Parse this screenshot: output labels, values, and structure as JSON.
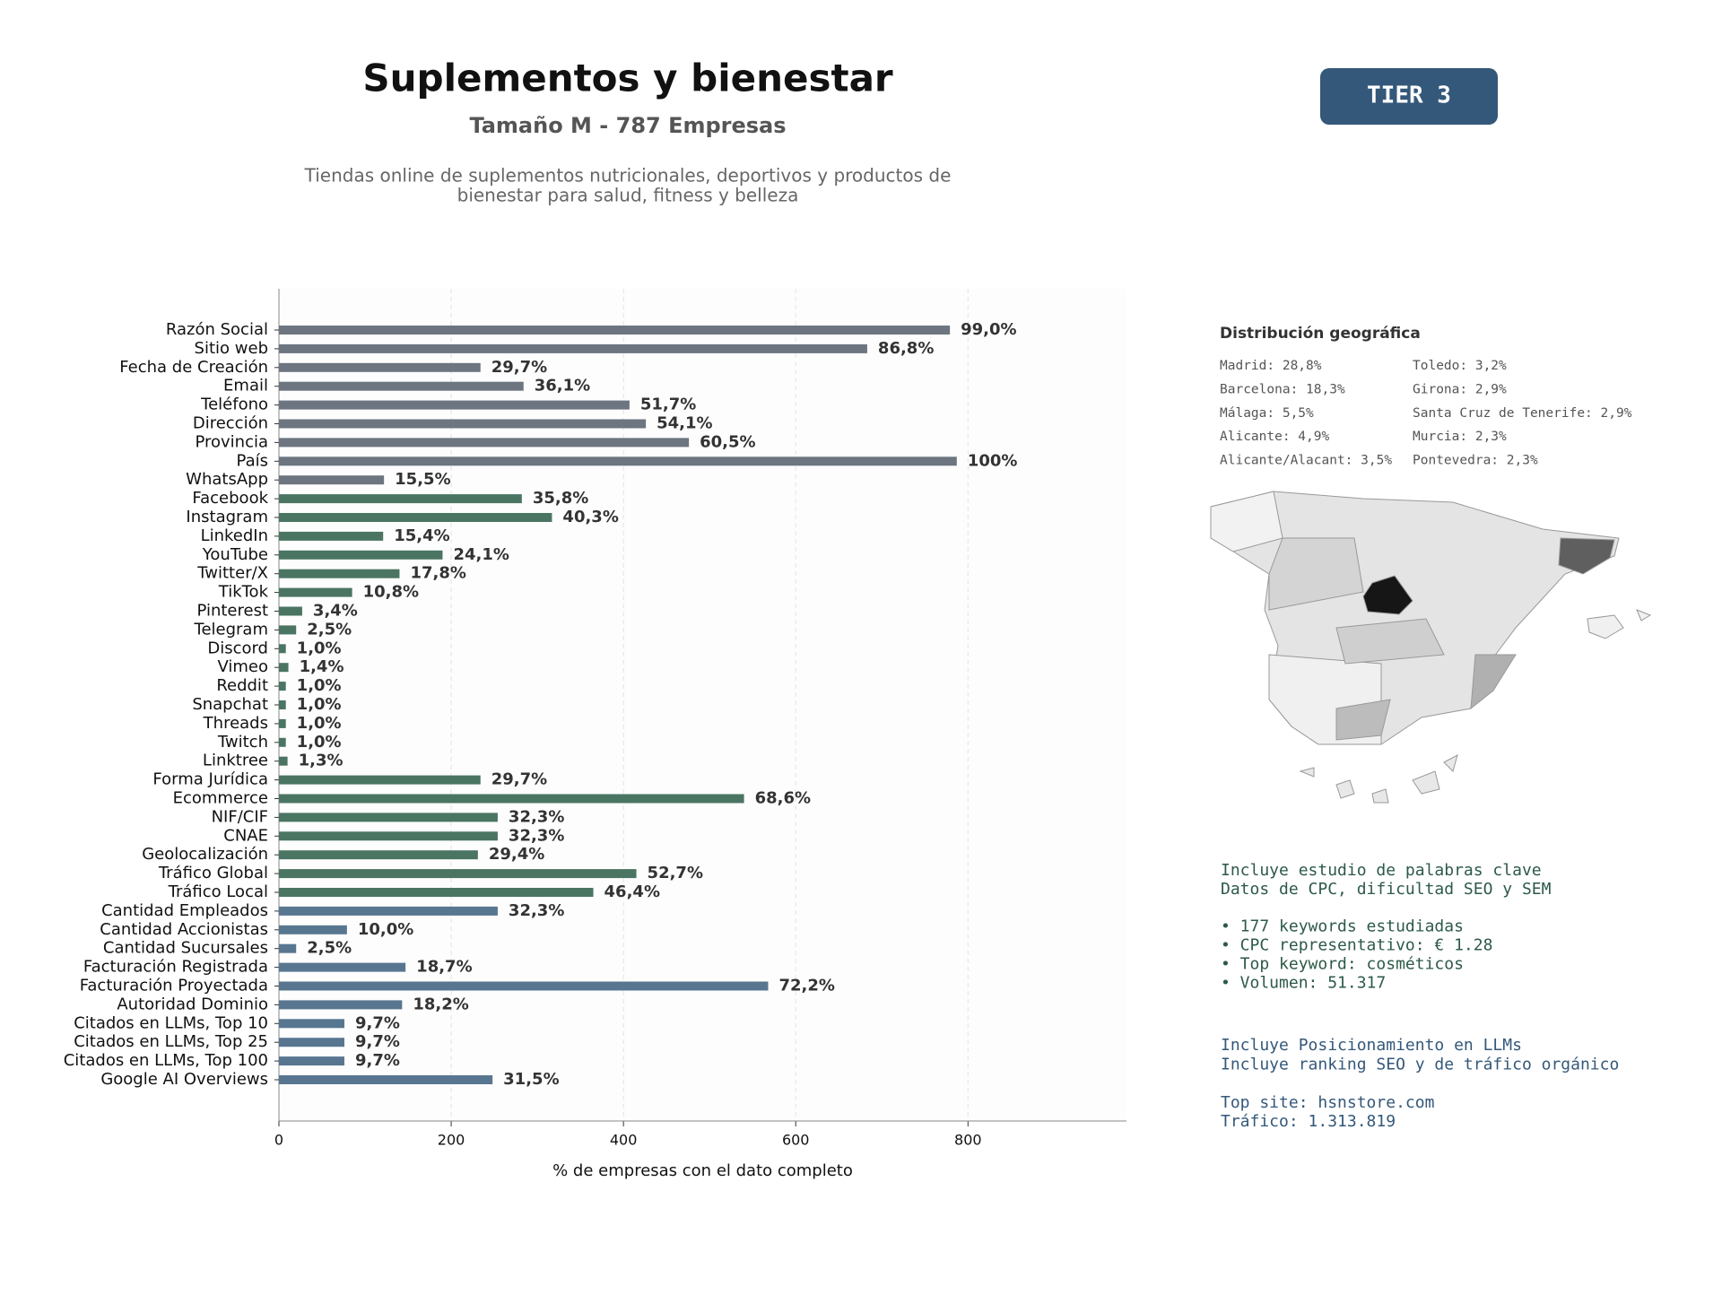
{
  "header": {
    "title": "Suplementos y bienestar",
    "subtitle": "Tamaño M - 787 Empresas",
    "description": [
      "Tiendas online de suplementos nutricionales, deportivos y productos de",
      "bienestar para salud, fitness y belleza"
    ],
    "badge": "TIER 3"
  },
  "chart_data": {
    "type": "bar",
    "orientation": "horizontal",
    "xlabel": "% de empresas con el dato completo",
    "categories": [
      "Razón Social",
      "Sitio web",
      "Fecha de Creación",
      "Email",
      "Teléfono",
      "Dirección",
      "Provincia",
      "País",
      "WhatsApp",
      "Facebook",
      "Instagram",
      "LinkedIn",
      "YouTube",
      "Twitter/X",
      "TikTok",
      "Pinterest",
      "Telegram",
      "Discord",
      "Vimeo",
      "Reddit",
      "Snapchat",
      "Threads",
      "Twitch",
      "Linktree",
      "Forma Jurídica",
      "Ecommerce",
      "NIF/CIF",
      "CNAE",
      "Geolocalización",
      "Tráfico Global",
      "Tráfico Local",
      "Cantidad Empleados",
      "Cantidad Accionistas",
      "Cantidad Sucursales",
      "Facturación Registrada",
      "Facturación Proyectada",
      "Autoridad Dominio",
      "Citados en LLMs, Top 10",
      "Citados en LLMs, Top 25",
      "Citados en LLMs, Top 100",
      "Google AI Overviews"
    ],
    "values": [
      779,
      683,
      234,
      284,
      407,
      426,
      476,
      787,
      122,
      282,
      317,
      121,
      190,
      140,
      85,
      27,
      20,
      8,
      11,
      8,
      8,
      8,
      8,
      10,
      234,
      540,
      254,
      254,
      231,
      415,
      365,
      254,
      79,
      20,
      147,
      568,
      143,
      76,
      76,
      76,
      248
    ],
    "value_labels": [
      "99,0%",
      "86,8%",
      "29,7%",
      "36,1%",
      "51,7%",
      "54,1%",
      "60,5%",
      "100%",
      "15,5%",
      "35,8%",
      "40,3%",
      "15,4%",
      "24,1%",
      "17,8%",
      "10,8%",
      "3,4%",
      "2,5%",
      "1,0%",
      "1,4%",
      "1,0%",
      "1,0%",
      "1,0%",
      "1,0%",
      "1,3%",
      "29,7%",
      "68,6%",
      "32,3%",
      "32,3%",
      "29,4%",
      "52,7%",
      "46,4%",
      "32,3%",
      "10,0%",
      "2,5%",
      "18,7%",
      "72,2%",
      "18,2%",
      "9,7%",
      "9,7%",
      "9,7%",
      "31,5%"
    ],
    "colors": [
      "#6c7580",
      "#6c7580",
      "#6c7580",
      "#6c7580",
      "#6c7580",
      "#6c7580",
      "#6c7580",
      "#6c7580",
      "#6c7580",
      "#4a7562",
      "#4a7562",
      "#4a7562",
      "#4a7562",
      "#4a7562",
      "#4a7562",
      "#4a7562",
      "#4a7562",
      "#4a7562",
      "#4a7562",
      "#4a7562",
      "#4a7562",
      "#4a7562",
      "#4a7562",
      "#4a7562",
      "#4a7562",
      "#4a7562",
      "#4a7562",
      "#4a7562",
      "#4a7562",
      "#4a7562",
      "#4a7562",
      "#587690",
      "#587690",
      "#587690",
      "#587690",
      "#587690",
      "#587690",
      "#587690",
      "#587690",
      "#587690",
      "#587690"
    ],
    "xlim": [
      0,
      984
    ],
    "xticks": [
      0,
      200,
      400,
      600,
      800
    ],
    "grid": true
  },
  "geo": {
    "title": "Distribución geográfica",
    "left": [
      "Madrid: 28,8%",
      "Barcelona: 18,3%",
      "Málaga: 5,5%",
      "Alicante: 4,9%",
      "Alicante/Alacant: 3,5%"
    ],
    "right": [
      "Toledo: 3,2%",
      "Girona: 2,9%",
      "Santa Cruz de Tenerife: 2,9%",
      "Murcia: 2,3%",
      "Pontevedra: 2,3%"
    ]
  },
  "notes": {
    "green": [
      "Incluye estudio de palabras clave",
      "Datos de CPC, dificultad SEO y SEM",
      "",
      "• 177 keywords estudiadas",
      "• CPC representativo: € 1.28",
      "• Top keyword: cosméticos",
      "• Volumen: 51.317"
    ],
    "blue": [
      "Incluye Posicionamiento en LLMs",
      "Incluye ranking SEO y de tráfico orgánico",
      "",
      "Top site: hsnstore.com",
      "Tráfico: 1.313.819"
    ]
  }
}
